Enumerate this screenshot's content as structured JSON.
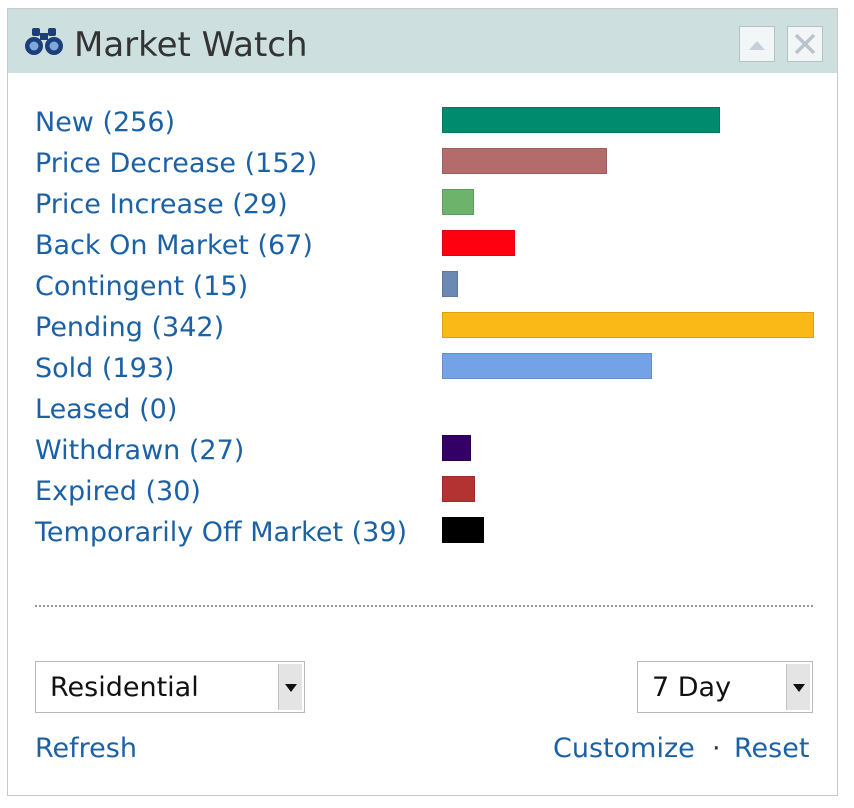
{
  "header": {
    "title": "Market Watch",
    "icon": "binoculars-icon",
    "collapse_icon": "chevron-up-icon",
    "close_icon": "close-icon"
  },
  "statuses": [
    {
      "label": "New (256)",
      "count": 256,
      "color": "#008a6e"
    },
    {
      "label": "Price Decrease (152)",
      "count": 152,
      "color": "#b36b6b"
    },
    {
      "label": "Price Increase (29)",
      "count": 29,
      "color": "#6db36b"
    },
    {
      "label": "Back On Market (67)",
      "count": 67,
      "color": "#ff0010"
    },
    {
      "label": "Contingent (15)",
      "count": 15,
      "color": "#6b8ab3"
    },
    {
      "label": "Pending (342)",
      "count": 342,
      "color": "#fbb917"
    },
    {
      "label": "Sold (193)",
      "count": 193,
      "color": "#73a3e6"
    },
    {
      "label": "Leased (0)",
      "count": 0,
      "color": "#888888"
    },
    {
      "label": "Withdrawn (27)",
      "count": 27,
      "color": "#330066"
    },
    {
      "label": "Expired (30)",
      "count": 30,
      "color": "#b33333"
    },
    {
      "label": "Temporarily Off Market (39)",
      "count": 39,
      "color": "#000000"
    }
  ],
  "filters": {
    "property_type": "Residential",
    "period": "7 Day"
  },
  "footer": {
    "refresh": "Refresh",
    "customize": "Customize",
    "separator": "·",
    "reset": "Reset"
  }
}
